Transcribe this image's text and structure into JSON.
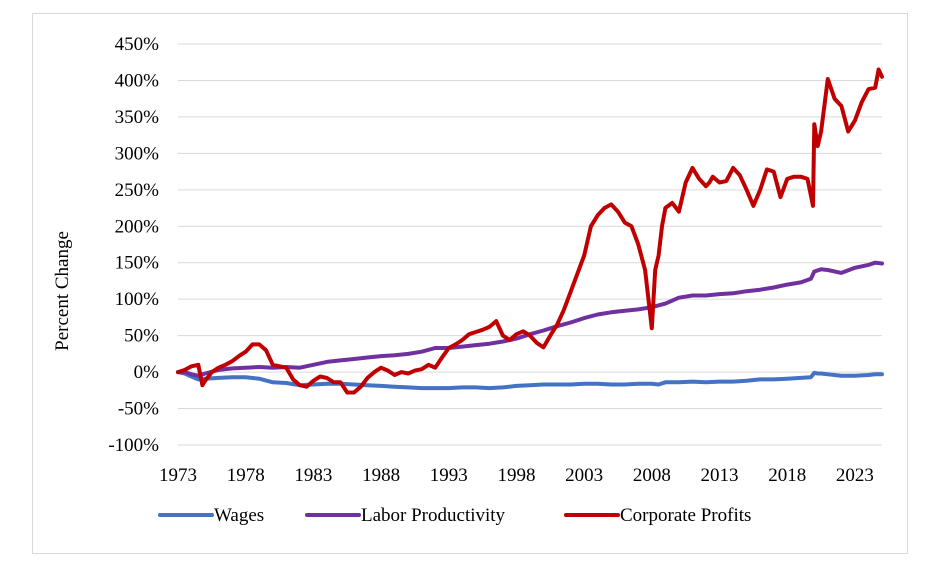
{
  "chart_data": {
    "type": "line",
    "ylabel": "Percent Change",
    "xlabel": "",
    "xlim": [
      1973,
      2025
    ],
    "ylim": [
      -100,
      450
    ],
    "y_ticks": [
      -100,
      -50,
      0,
      50,
      100,
      150,
      200,
      250,
      300,
      350,
      400,
      450
    ],
    "y_tick_labels": [
      "-100%",
      "-50%",
      "0%",
      "50%",
      "100%",
      "150%",
      "200%",
      "250%",
      "300%",
      "350%",
      "400%",
      "450%"
    ],
    "x_ticks": [
      1973,
      1978,
      1983,
      1988,
      1993,
      1998,
      2003,
      2008,
      2013,
      2018,
      2023
    ],
    "x_tick_labels": [
      "1973",
      "1978",
      "1983",
      "1988",
      "1993",
      "1998",
      "2003",
      "2008",
      "2013",
      "2018",
      "2023"
    ],
    "grid": "horizontal",
    "legend_position": "bottom",
    "series": [
      {
        "name": "Wages",
        "color": "#4472c4",
        "x": [
          1973,
          1973.5,
          1974,
          1974.5,
          1975,
          1976,
          1977,
          1978,
          1979,
          1980,
          1981,
          1982,
          1983,
          1984,
          1985,
          1986,
          1987,
          1988,
          1989,
          1990,
          1991,
          1992,
          1993,
          1994,
          1995,
          1996,
          1997,
          1998,
          1999,
          2000,
          2001,
          2002,
          2003,
          2004,
          2005,
          2006,
          2007,
          2008,
          2008.5,
          2009,
          2010,
          2011,
          2012,
          2013,
          2014,
          2015,
          2016,
          2017,
          2018,
          2019,
          2019.75,
          2020,
          2020.25,
          2020.5,
          2021,
          2022,
          2023,
          2024,
          2024.5,
          2025
        ],
        "y": [
          0,
          -2,
          -6,
          -10,
          -9,
          -8,
          -7,
          -7,
          -9,
          -14,
          -15,
          -18,
          -17,
          -16,
          -16,
          -17,
          -18,
          -19,
          -20,
          -21,
          -22,
          -22,
          -22,
          -21,
          -21,
          -22,
          -21,
          -19,
          -18,
          -17,
          -17,
          -17,
          -16,
          -16,
          -17,
          -17,
          -16,
          -16,
          -17,
          -14,
          -14,
          -13,
          -14,
          -13,
          -13,
          -12,
          -10,
          -10,
          -9,
          -8,
          -7,
          -1,
          -2,
          -2,
          -3,
          -5,
          -5,
          -4,
          -3,
          -3
        ]
      },
      {
        "name": "Labor Productivity",
        "color": "#7030a0",
        "x": [
          1973,
          1973.5,
          1974,
          1974.5,
          1975,
          1976,
          1977,
          1978,
          1979,
          1980,
          1981,
          1982,
          1983,
          1984,
          1985,
          1986,
          1987,
          1988,
          1989,
          1990,
          1991,
          1992,
          1993,
          1994,
          1995,
          1996,
          1997,
          1998,
          1999,
          2000,
          2001,
          2002,
          2003,
          2004,
          2005,
          2006,
          2007,
          2008,
          2009,
          2010,
          2011,
          2012,
          2013,
          2014,
          2015,
          2016,
          2017,
          2018,
          2019,
          2019.75,
          2020,
          2020.5,
          2021,
          2022,
          2023,
          2024,
          2024.5,
          2025
        ],
        "y": [
          0,
          0,
          -3,
          -5,
          -2,
          3,
          5,
          6,
          7,
          6,
          7,
          6,
          10,
          14,
          16,
          18,
          20,
          22,
          23,
          25,
          28,
          33,
          33,
          35,
          37,
          39,
          42,
          46,
          52,
          57,
          63,
          68,
          74,
          79,
          82,
          84,
          86,
          89,
          94,
          102,
          105,
          105,
          107,
          108,
          111,
          113,
          116,
          120,
          123,
          128,
          138,
          141,
          140,
          136,
          143,
          147,
          150,
          149
        ]
      },
      {
        "name": "Corporate Profits",
        "color": "#c00000",
        "x": [
          1973,
          1973.5,
          1974,
          1974.5,
          1974.8,
          1975,
          1975.5,
          1976,
          1976.5,
          1977,
          1977.5,
          1978,
          1978.5,
          1979,
          1979.5,
          1980,
          1980.5,
          1981,
          1981.5,
          1982,
          1982.5,
          1983,
          1983.5,
          1984,
          1984.5,
          1985,
          1985.5,
          1986,
          1986.5,
          1987,
          1987.5,
          1988,
          1988.5,
          1989,
          1989.5,
          1990,
          1990.5,
          1991,
          1991.5,
          1992,
          1992.5,
          1993,
          1993.5,
          1994,
          1994.5,
          1995,
          1995.5,
          1996,
          1996.5,
          1997,
          1997.5,
          1998,
          1998.5,
          1999,
          1999.5,
          2000,
          2000.5,
          2001,
          2001.5,
          2002,
          2002.5,
          2003,
          2003.5,
          2004,
          2004.5,
          2005,
          2005.5,
          2006,
          2006.5,
          2007,
          2007.5,
          2008,
          2008.25,
          2008.5,
          2008.75,
          2009,
          2009.5,
          2010,
          2010.5,
          2011,
          2011.5,
          2012,
          2012.25,
          2012.5,
          2013,
          2013.5,
          2014,
          2014.5,
          2015,
          2015.5,
          2016,
          2016.5,
          2017,
          2017.5,
          2018,
          2018.5,
          2019,
          2019.5,
          2019.9,
          2020,
          2020.25,
          2020.5,
          2021,
          2021.5,
          2022,
          2022.5,
          2023,
          2023.5,
          2024,
          2024.5,
          2024.75,
          2025
        ],
        "y": [
          0,
          3,
          8,
          10,
          -18,
          -12,
          0,
          6,
          10,
          15,
          22,
          28,
          38,
          38,
          30,
          10,
          8,
          6,
          -10,
          -18,
          -20,
          -12,
          -6,
          -8,
          -14,
          -14,
          -28,
          -28,
          -20,
          -8,
          0,
          6,
          2,
          -4,
          0,
          -2,
          2,
          4,
          10,
          6,
          20,
          33,
          38,
          44,
          52,
          55,
          58,
          62,
          70,
          50,
          44,
          52,
          56,
          50,
          40,
          34,
          50,
          65,
          85,
          110,
          135,
          160,
          200,
          215,
          225,
          230,
          220,
          205,
          200,
          175,
          140,
          60,
          140,
          160,
          200,
          225,
          232,
          220,
          260,
          280,
          265,
          255,
          260,
          268,
          260,
          262,
          280,
          270,
          250,
          228,
          250,
          278,
          275,
          240,
          265,
          268,
          268,
          265,
          228,
          340,
          310,
          330,
          402,
          375,
          365,
          330,
          345,
          370,
          388,
          390,
          415,
          405
        ]
      }
    ]
  }
}
